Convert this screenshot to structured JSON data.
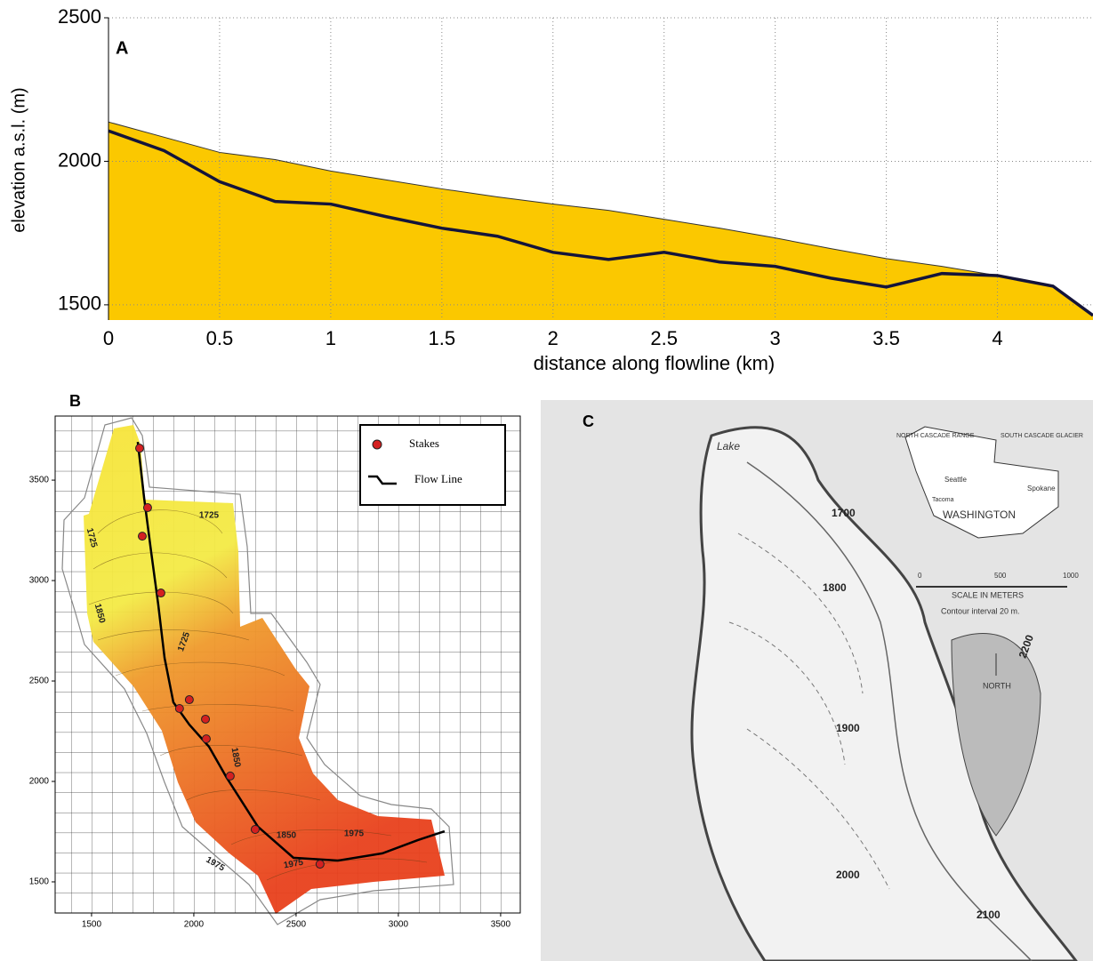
{
  "chart_data": [
    {
      "type": "area",
      "annotation": "A",
      "xlabel": "distance along flowline (km)",
      "ylabel": "elevation a.s.l. (m)",
      "x": [
        0,
        0.25,
        0.5,
        0.75,
        1,
        1.25,
        1.5,
        1.75,
        2,
        2.25,
        2.5,
        2.75,
        3,
        3.25,
        3.5,
        3.75,
        4,
        4.25,
        4.43
      ],
      "series": [
        {
          "color": "#fbc800",
          "fill": true,
          "values": [
            2137,
            2084,
            2031,
            2006,
            1966,
            1935,
            1904,
            1876,
            1851,
            1829,
            1798,
            1767,
            1733,
            1696,
            1661,
            1634,
            1602,
            1565,
            1463
          ]
        },
        {
          "color": "#14143a",
          "fill": false,
          "values": [
            2106,
            2037,
            1929,
            1860,
            1851,
            1807,
            1767,
            1739,
            1683,
            1658,
            1683,
            1649,
            1634,
            1593,
            1562,
            1609,
            1602,
            1565,
            1463
          ]
        }
      ],
      "xlim": [
        0,
        4.43
      ],
      "xticks": [
        0,
        0.5,
        1,
        1.5,
        2,
        2.5,
        3,
        3.5,
        4
      ],
      "ylim": [
        1447,
        2500
      ],
      "yticks": [
        1500,
        2000,
        2500
      ],
      "grid": true
    },
    {
      "type": "scatter",
      "annotation": "B",
      "series": [
        {
          "name": "Stakes",
          "color": "#d42020",
          "mode": "markers",
          "x": [
            1735,
            1774,
            1748,
            1839,
            1978,
            1930,
            2057,
            2061,
            2178,
            2300,
            2617
          ],
          "values": [
            3659,
            3363,
            3221,
            2938,
            2407,
            2363,
            2310,
            2212,
            2027,
            1761,
            1588
          ]
        },
        {
          "name": "Flow Line",
          "color": "#000000",
          "mode": "line",
          "x": [
            1726,
            1757,
            1791,
            1826,
            1857,
            1900,
            1978,
            2074,
            2161,
            2313,
            2487,
            2704,
            2922,
            3096,
            3226
          ],
          "values": [
            3690,
            3412,
            3146,
            2881,
            2615,
            2394,
            2283,
            2173,
            2018,
            1775,
            1620,
            1606,
            1642,
            1708,
            1752
          ]
        }
      ],
      "contour_labels": [
        "1725",
        "1725",
        "1725",
        "1850",
        "1850",
        "1850",
        "1975",
        "1975",
        "1975"
      ],
      "xlim": [
        1322,
        3596
      ],
      "xticks": [
        1500,
        2000,
        2500,
        3000,
        3500
      ],
      "ylim": [
        1345,
        3819
      ],
      "yticks": [
        1500,
        2000,
        2500,
        3000,
        3500
      ]
    }
  ],
  "panel_c": {
    "label": "C",
    "lake": "Lake",
    "range": "NORTH CASCADE RANGE",
    "glacier": "SOUTH CASCADE GLACIER",
    "seattle": "Seattle",
    "spokane": "Spokane",
    "tacoma": "Tacoma",
    "state": "WASHINGTON",
    "scale_ticks": [
      "0",
      "500",
      "1000"
    ],
    "scale_title": "SCALE IN METERS",
    "contour": "Contour interval 20 m.",
    "north": "NORTH",
    "contours": [
      "1700",
      "1800",
      "1900",
      "2000",
      "2100",
      "2200"
    ]
  }
}
